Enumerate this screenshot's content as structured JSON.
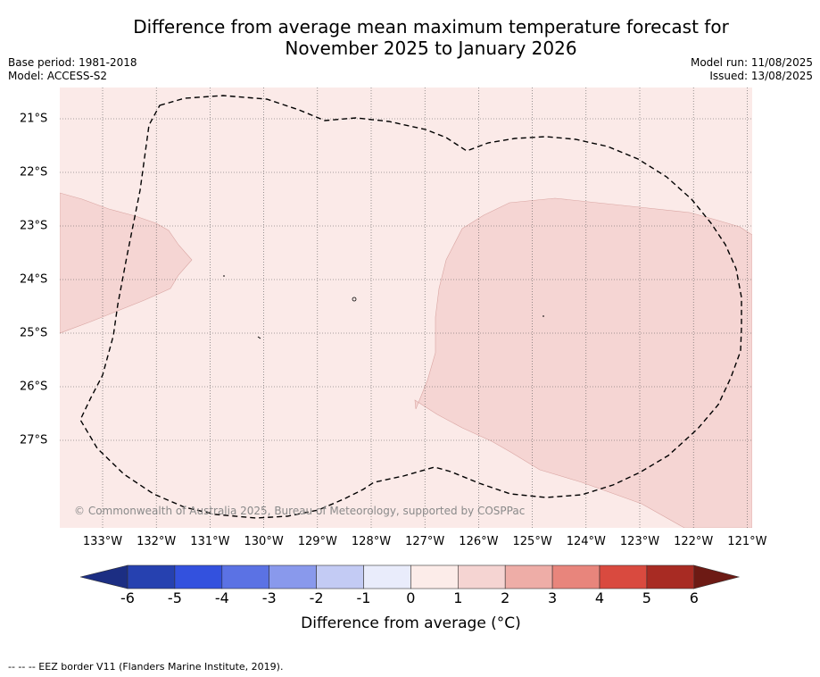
{
  "title": {
    "line1": "Difference from average mean maximum temperature forecast for",
    "line2": "November 2025 to January 2026"
  },
  "meta": {
    "base_period": "Base period: 1981-2018",
    "model": "Model: ACCESS-S2",
    "model_run": "Model run: 11/08/2025",
    "issued": "Issued: 13/08/2025"
  },
  "map": {
    "lon_ticks": [
      "133°W",
      "132°W",
      "131°W",
      "130°W",
      "129°W",
      "128°W",
      "127°W",
      "126°W",
      "125°W",
      "124°W",
      "123°W",
      "122°W",
      "121°W"
    ],
    "lat_ticks": [
      "21°S",
      "22°S",
      "23°S",
      "24°S",
      "25°S",
      "26°S",
      "27°S"
    ],
    "copyright": "© Commonwealth of Australia 2025, Bureau of Meteorology, supported by COSPPac",
    "colors": {
      "background_anomaly_0_1": "#fbeae8",
      "anomaly_1_2": "#f5d5d3"
    }
  },
  "colorbar": {
    "ticks": [
      "-6",
      "-5",
      "-4",
      "-3",
      "-2",
      "-1",
      "0",
      "1",
      "2",
      "3",
      "4",
      "5",
      "6"
    ],
    "colors": [
      "#1c2e83",
      "#2641b0",
      "#3351de",
      "#5b72e4",
      "#8999ec",
      "#c3cbf4",
      "#e9ecfb",
      "#fcece9",
      "#f5d4d2",
      "#eeada7",
      "#e8857c",
      "#d94a3f",
      "#a82b23",
      "#6d1a14"
    ],
    "label": "Difference from average (°C)"
  },
  "footnote": "--  --  -- EEZ border V11 (Flanders Marine Institute, 2019)."
}
